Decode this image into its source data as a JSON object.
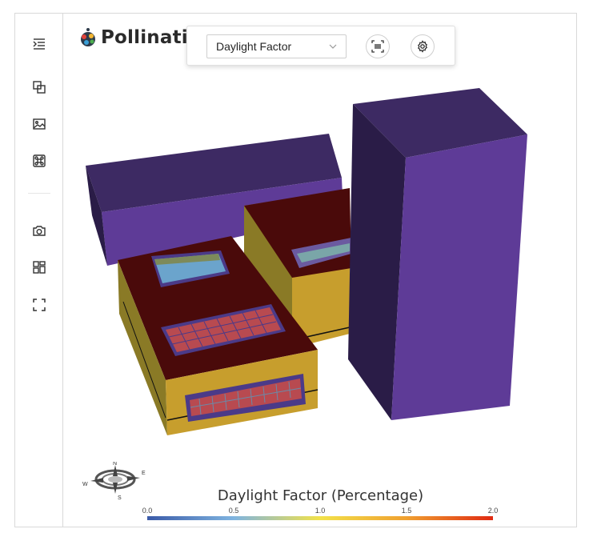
{
  "app": {
    "logo_text": "Pollination"
  },
  "sidebar": {
    "items": [
      {
        "name": "outline-toggle",
        "icon": "indent-list-icon"
      },
      {
        "name": "layers",
        "icon": "layers-icon"
      },
      {
        "name": "image",
        "icon": "image-icon"
      },
      {
        "name": "command",
        "icon": "command-icon"
      },
      {
        "name": "camera",
        "icon": "camera-icon"
      },
      {
        "name": "layout",
        "icon": "layout-icon"
      },
      {
        "name": "fullscreen",
        "icon": "fullscreen-icon"
      }
    ]
  },
  "toolbar": {
    "result_select": {
      "value": "Daylight Factor"
    },
    "buttons": [
      {
        "name": "fit-view",
        "icon": "fit-view-icon"
      },
      {
        "name": "settings",
        "icon": "gear-icon"
      }
    ]
  },
  "legend": {
    "title": "Daylight Factor (Percentage)",
    "ticks": [
      "0.0",
      "0.5",
      "1.0",
      "1.5",
      "2.0"
    ],
    "colors": [
      "#3a5aa8",
      "#7fb4e0",
      "#f2e24a",
      "#f0a030",
      "#e02a12"
    ]
  },
  "compass": {
    "labels": [
      "N",
      "E",
      "S",
      "W"
    ]
  },
  "scene": {
    "colors": {
      "context_top": "#3d2a63",
      "context_side": "#5e3b97",
      "context_dark": "#2a1c47",
      "roof": "#4a0a0a",
      "wall_yellow": "#c79e2d",
      "wall_dark_yellow": "#8a7a26",
      "skylight_grid": "#b84a50",
      "skylight_blue": "#6ba4cc"
    }
  }
}
